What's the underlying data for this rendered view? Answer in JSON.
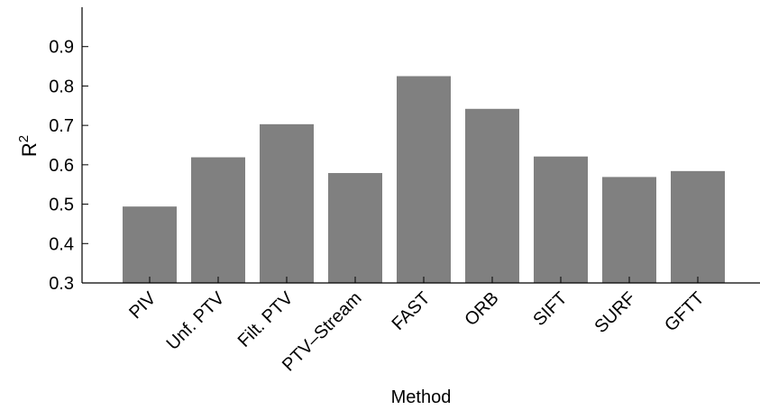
{
  "chart_data": {
    "type": "bar",
    "title": "",
    "xlabel": "Method",
    "ylabel": "R",
    "ylabel_superscript": "2",
    "categories": [
      "PIV",
      "Unf. PTV",
      "Filt. PTV",
      "PTV–Stream",
      "FAST",
      "ORB",
      "SIFT",
      "SURF",
      "GFTT"
    ],
    "values": [
      0.494,
      0.619,
      0.703,
      0.579,
      0.825,
      0.742,
      0.621,
      0.569,
      0.584
    ],
    "ylim": [
      0.3,
      1.0
    ],
    "yticks": [
      0.3,
      0.4,
      0.5,
      0.6,
      0.7,
      0.8,
      0.9
    ],
    "ytick_labels": [
      "0.3",
      "0.4",
      "0.5",
      "0.6",
      "0.7",
      "0.8",
      "0.9"
    ],
    "grid": false,
    "legend": "none",
    "bar_color": "#808080"
  }
}
